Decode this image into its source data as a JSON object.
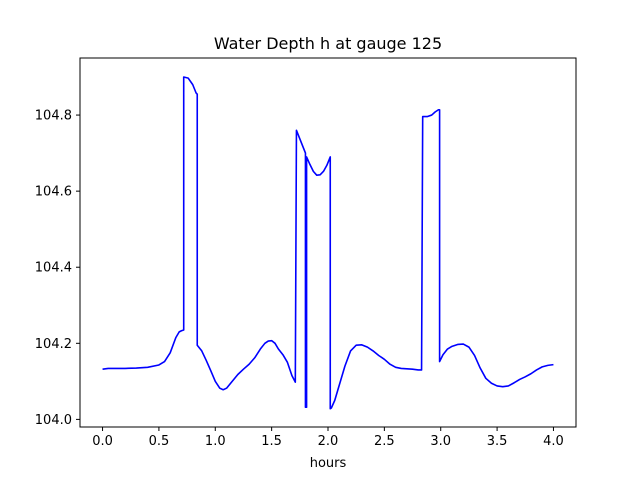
{
  "chart_data": {
    "type": "line",
    "title": "Water Depth h at gauge 125",
    "xlabel": "hours",
    "ylabel": "",
    "xlim": [
      -0.2,
      4.2
    ],
    "ylim": [
      103.98,
      104.95
    ],
    "grid": false,
    "x_ticks": [
      0.0,
      0.5,
      1.0,
      1.5,
      2.0,
      2.5,
      3.0,
      3.5,
      4.0
    ],
    "x_tick_labels": [
      "0.0",
      "0.5",
      "1.0",
      "1.5",
      "2.0",
      "2.5",
      "3.0",
      "3.5",
      "4.0"
    ],
    "y_ticks": [
      104.0,
      104.2,
      104.4,
      104.6,
      104.8
    ],
    "y_tick_labels": [
      "104.0",
      "104.2",
      "104.4",
      "104.6",
      "104.8"
    ],
    "series": [
      {
        "color": "#0000ff",
        "x": [
          0.0,
          0.05,
          0.1,
          0.2,
          0.3,
          0.4,
          0.5,
          0.55,
          0.6,
          0.65,
          0.68,
          0.7,
          0.72,
          0.72,
          0.76,
          0.8,
          0.83,
          0.84,
          0.84,
          0.88,
          0.92,
          0.96,
          1.0,
          1.04,
          1.07,
          1.1,
          1.15,
          1.2,
          1.25,
          1.3,
          1.35,
          1.4,
          1.44,
          1.47,
          1.5,
          1.53,
          1.56,
          1.6,
          1.64,
          1.68,
          1.71,
          1.72,
          1.76,
          1.8,
          1.8,
          1.81,
          1.81,
          1.84,
          1.87,
          1.9,
          1.93,
          1.96,
          1.99,
          2.02,
          2.02,
          2.03,
          2.06,
          2.1,
          2.15,
          2.2,
          2.25,
          2.3,
          2.35,
          2.4,
          2.45,
          2.5,
          2.55,
          2.6,
          2.65,
          2.7,
          2.75,
          2.8,
          2.83,
          2.84,
          2.88,
          2.92,
          2.95,
          2.98,
          2.99,
          2.99,
          3.02,
          3.06,
          3.1,
          3.15,
          3.2,
          3.25,
          3.3,
          3.35,
          3.4,
          3.45,
          3.5,
          3.55,
          3.6,
          3.65,
          3.7,
          3.75,
          3.8,
          3.85,
          3.9,
          3.95,
          4.0
        ],
        "y": [
          104.132,
          104.134,
          104.134,
          104.134,
          104.135,
          104.137,
          104.143,
          104.152,
          104.175,
          104.215,
          104.23,
          104.233,
          104.235,
          104.9,
          104.897,
          104.88,
          104.858,
          104.855,
          104.195,
          104.18,
          104.155,
          104.128,
          104.1,
          104.082,
          104.078,
          104.082,
          104.1,
          104.118,
          104.132,
          104.145,
          104.162,
          104.185,
          104.2,
          104.206,
          104.207,
          104.2,
          104.185,
          104.17,
          104.15,
          104.115,
          104.098,
          104.76,
          104.73,
          104.7,
          104.032,
          104.032,
          104.69,
          104.67,
          104.652,
          104.642,
          104.643,
          104.652,
          104.668,
          104.69,
          104.028,
          104.03,
          104.05,
          104.09,
          104.14,
          104.18,
          104.195,
          104.196,
          104.19,
          104.18,
          104.168,
          104.158,
          104.145,
          104.137,
          104.134,
          104.133,
          104.132,
          104.13,
          104.13,
          104.796,
          104.796,
          104.8,
          104.808,
          104.814,
          104.814,
          104.152,
          104.17,
          104.185,
          104.192,
          104.197,
          104.198,
          104.19,
          104.168,
          104.135,
          104.108,
          104.095,
          104.088,
          104.086,
          104.088,
          104.096,
          104.105,
          104.112,
          104.12,
          104.13,
          104.138,
          104.142,
          104.144
        ]
      }
    ]
  }
}
